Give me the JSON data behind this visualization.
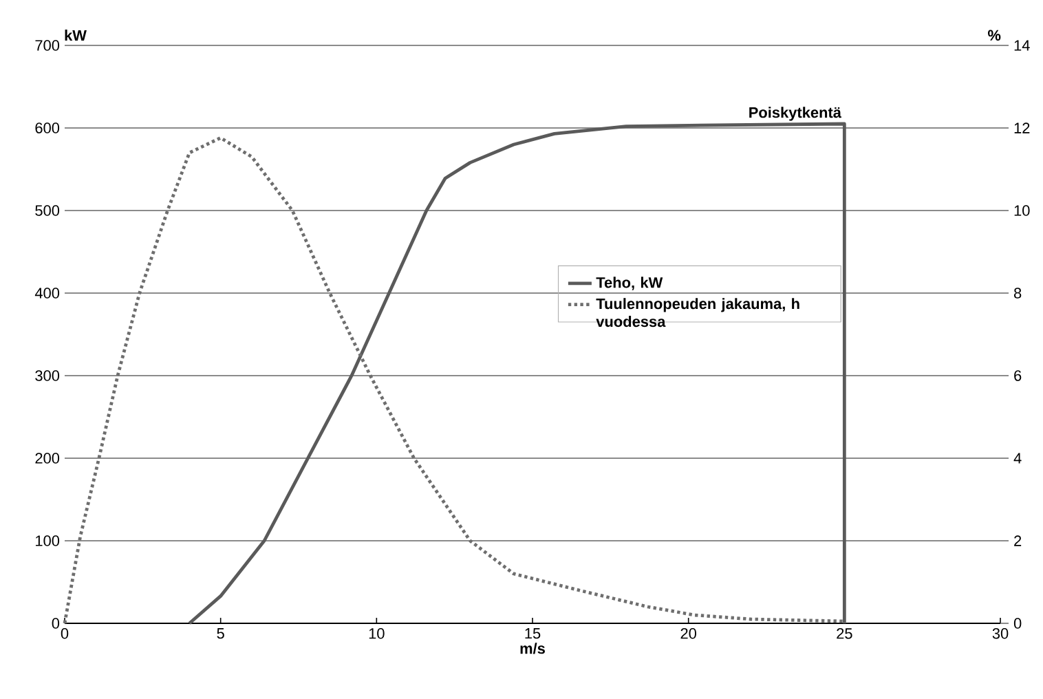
{
  "chart_data": {
    "type": "line",
    "xlabel": "m/s",
    "ylabel": "kW",
    "y2label": "%",
    "xlim": [
      0,
      30
    ],
    "xticks": [
      0,
      5,
      10,
      15,
      20,
      25,
      30
    ],
    "ylim": [
      0,
      700
    ],
    "yticks": [
      0,
      100,
      200,
      300,
      400,
      500,
      600,
      700
    ],
    "y2lim": [
      0,
      14
    ],
    "y2ticks": [
      0,
      2,
      4,
      6,
      8,
      10,
      12,
      14
    ],
    "grid": "y",
    "legend": "right",
    "series": [
      {
        "name": "Teho, kW",
        "color": "#5a5a5a",
        "line_style": "solid",
        "x": [
          4,
          5,
          6.4,
          7.8,
          9.2,
          10.4,
          11.6,
          12.2,
          13,
          14.4,
          15.7,
          18,
          20,
          25,
          25
        ],
        "values": [
          0,
          33,
          100,
          200,
          300,
          400,
          500,
          539,
          558,
          580,
          593,
          602,
          603,
          605,
          0
        ]
      },
      {
        "name": "Tuulennopeuden jakauma, h vuodessa",
        "color": "#6e6e6e",
        "line_style": "dotted",
        "axis": "y2",
        "x": [
          0,
          0.5,
          1.1,
          1.7,
          2.4,
          3.3,
          4,
          5,
          6,
          7.3,
          8.5,
          9.8,
          11.2,
          13,
          14.4,
          16.5,
          18.7,
          20.2,
          22,
          25
        ],
        "values": [
          0,
          2.1,
          4,
          6,
          8,
          10,
          11.4,
          11.76,
          11.3,
          10,
          8,
          6,
          4,
          2,
          1.2,
          0.8,
          0.4,
          0.2,
          0.1,
          0.05
        ]
      }
    ],
    "annotations": [
      {
        "text": "Poiskytkentä",
        "x": 25,
        "y": 605
      }
    ]
  }
}
